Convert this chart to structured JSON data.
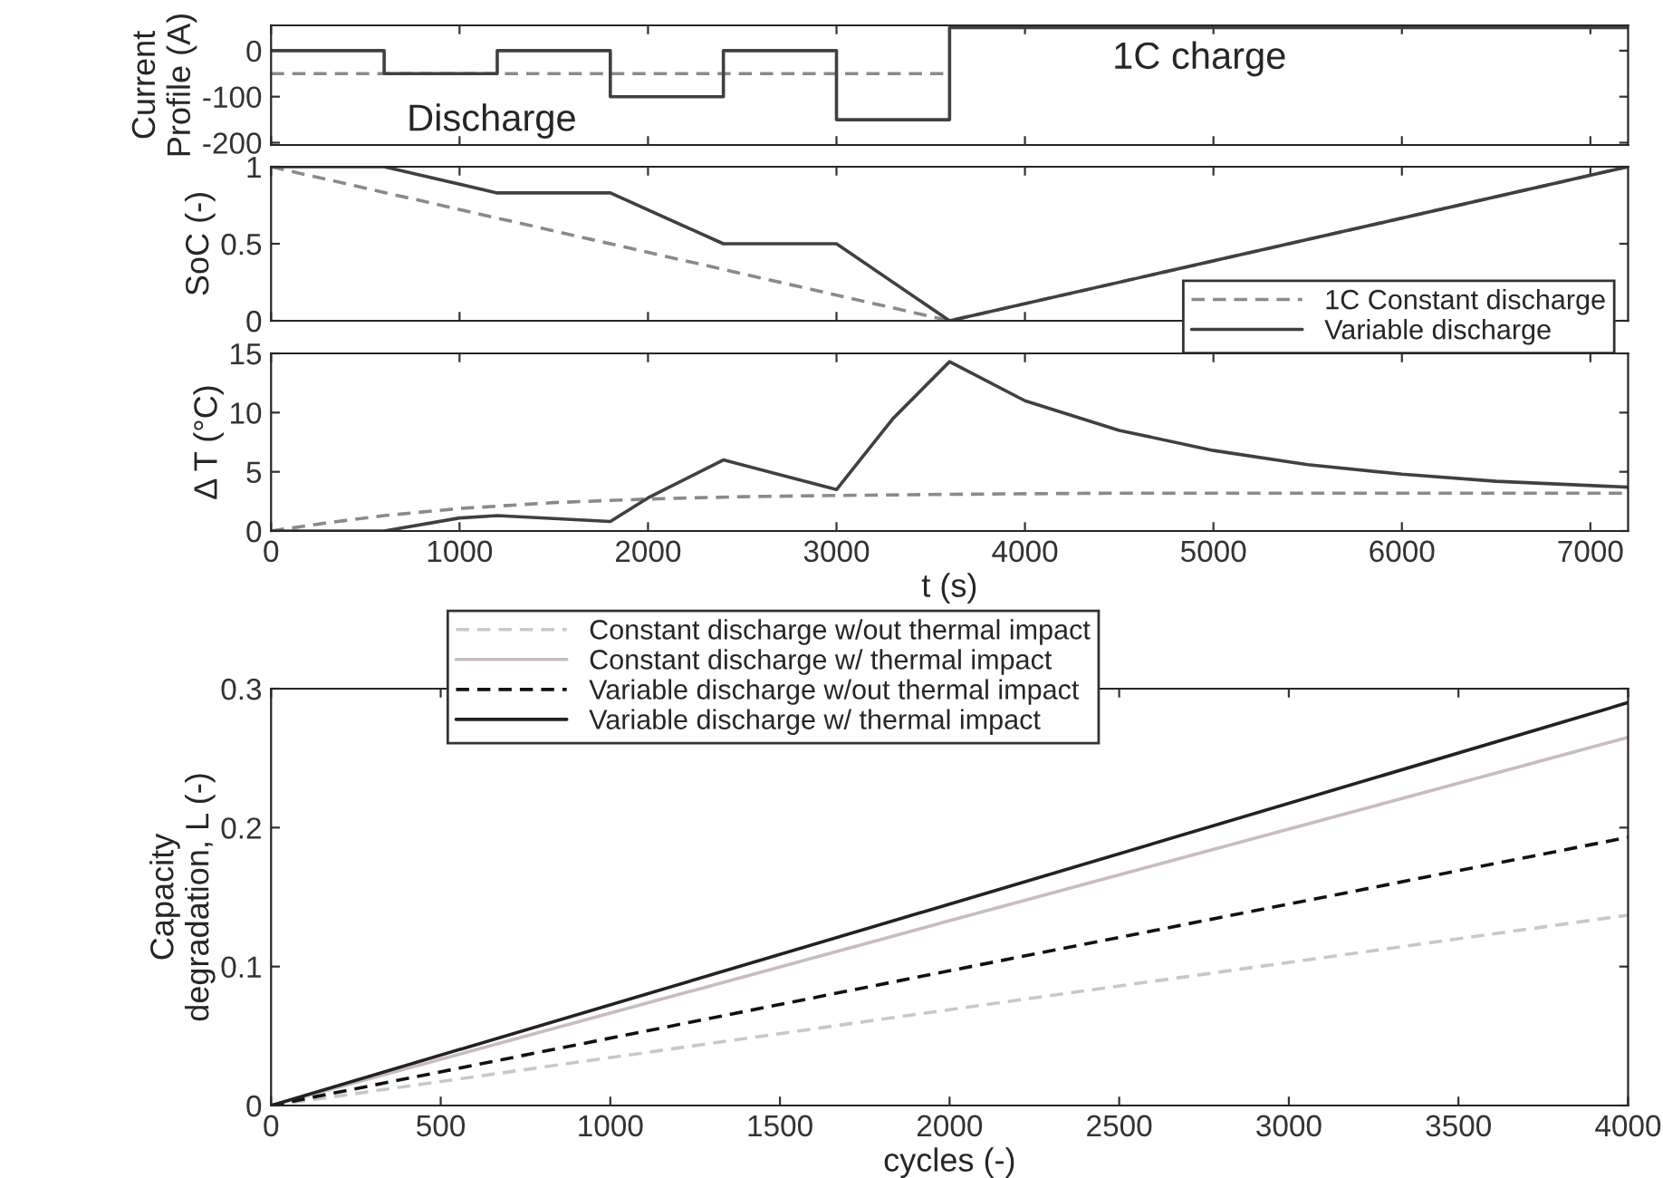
{
  "chart_data": [
    {
      "type": "step",
      "ylabel": "Current\nProfile (A)",
      "xlim": [
        0,
        7200
      ],
      "ylim": [
        -205,
        55
      ],
      "yticks": [
        0,
        -100,
        -200
      ],
      "xticks": [
        0,
        1000,
        2000,
        3000,
        4000,
        5000,
        6000,
        7000
      ],
      "tick_labels": "y",
      "grid": false,
      "legend": false,
      "annotations": [
        "Discharge",
        "1C charge"
      ],
      "series": [
        {
          "color": "#8a8a8a",
          "line_style": "dashed",
          "x": [
            0,
            3600
          ],
          "values": [
            -50,
            -50
          ]
        },
        {
          "color": "#404040",
          "line_style": "solid",
          "x": [
            0,
            600,
            1200,
            1800,
            2400,
            3000,
            3600,
            7200
          ],
          "values": [
            0,
            -50,
            0,
            -100,
            0,
            -150,
            50,
            50
          ]
        }
      ]
    },
    {
      "type": "line",
      "ylabel": "SoC (-)",
      "xlim": [
        0,
        7200
      ],
      "ylim": [
        0,
        1
      ],
      "yticks": [
        0,
        0.5,
        1
      ],
      "xticks": [
        0,
        1000,
        2000,
        3000,
        4000,
        5000,
        6000,
        7000
      ],
      "tick_labels": "y",
      "grid": false,
      "legend": "bottom right",
      "series": [
        {
          "name": "1C Constant discharge",
          "color": "#8a8a8a",
          "line_style": "dashed",
          "x": [
            0,
            3600,
            7200
          ],
          "values": [
            1,
            0,
            1
          ]
        },
        {
          "name": "Variable discharge",
          "color": "#404040",
          "line_style": "solid",
          "x": [
            0,
            600,
            1200,
            1800,
            2400,
            3000,
            3600,
            7200
          ],
          "values": [
            1,
            1,
            0.83,
            0.83,
            0.5,
            0.5,
            0,
            1
          ]
        }
      ]
    },
    {
      "type": "line",
      "ylabel": "Δ T (°C)",
      "xlabel": "t (s)",
      "xlim": [
        0,
        7200
      ],
      "ylim": [
        0,
        15
      ],
      "yticks": [
        0,
        5,
        10,
        15
      ],
      "xticks": [
        0,
        1000,
        2000,
        3000,
        4000,
        5000,
        6000,
        7000
      ],
      "grid": false,
      "legend": false,
      "series": [
        {
          "color": "#8a8a8a",
          "line_style": "dashed",
          "x": [
            0,
            300,
            600,
            1000,
            1500,
            2000,
            2500,
            3000,
            3600,
            4500,
            5500,
            7200
          ],
          "values": [
            0,
            0.7,
            1.3,
            1.9,
            2.4,
            2.7,
            2.9,
            3.0,
            3.1,
            3.2,
            3.2,
            3.2
          ]
        },
        {
          "color": "#404040",
          "line_style": "solid",
          "x": [
            0,
            600,
            1000,
            1200,
            1800,
            2000,
            2400,
            3000,
            3300,
            3600,
            4000,
            4500,
            5000,
            5500,
            6000,
            6500,
            7200
          ],
          "values": [
            0,
            0,
            1.1,
            1.3,
            0.8,
            2.8,
            6.0,
            3.5,
            9.5,
            14.3,
            11.0,
            8.5,
            6.8,
            5.6,
            4.8,
            4.2,
            3.7
          ]
        }
      ]
    },
    {
      "type": "line",
      "ylabel": "Capacity\ndegradation, L (-)",
      "xlabel": "cycles (-)",
      "xlim": [
        0,
        4000
      ],
      "ylim": [
        0,
        0.3
      ],
      "yticks": [
        0,
        0.1,
        0.2,
        0.3
      ],
      "xticks": [
        0,
        500,
        1000,
        1500,
        2000,
        2500,
        3000,
        3500,
        4000
      ],
      "grid": false,
      "legend": "top left",
      "series": [
        {
          "name": "Constant discharge w/out thermal impact",
          "color": "#c8c8c8",
          "line_style": "dashed",
          "x": [
            0,
            2000,
            4000
          ],
          "values": [
            0,
            0.069,
            0.137
          ]
        },
        {
          "name": "Constant discharge w/ thermal impact",
          "color": "#c8bcbc",
          "line_style": "solid",
          "x": [
            0,
            2000,
            4000
          ],
          "values": [
            0,
            0.133,
            0.265
          ]
        },
        {
          "name": "Variable discharge w/out thermal impact",
          "color": "#111111",
          "line_style": "dashed",
          "x": [
            0,
            2000,
            4000
          ],
          "values": [
            0,
            0.097,
            0.193
          ]
        },
        {
          "name": "Variable discharge w/ thermal impact",
          "color": "#222222",
          "line_style": "solid",
          "x": [
            0,
            2000,
            4000
          ],
          "values": [
            0,
            0.145,
            0.29
          ]
        }
      ]
    }
  ]
}
